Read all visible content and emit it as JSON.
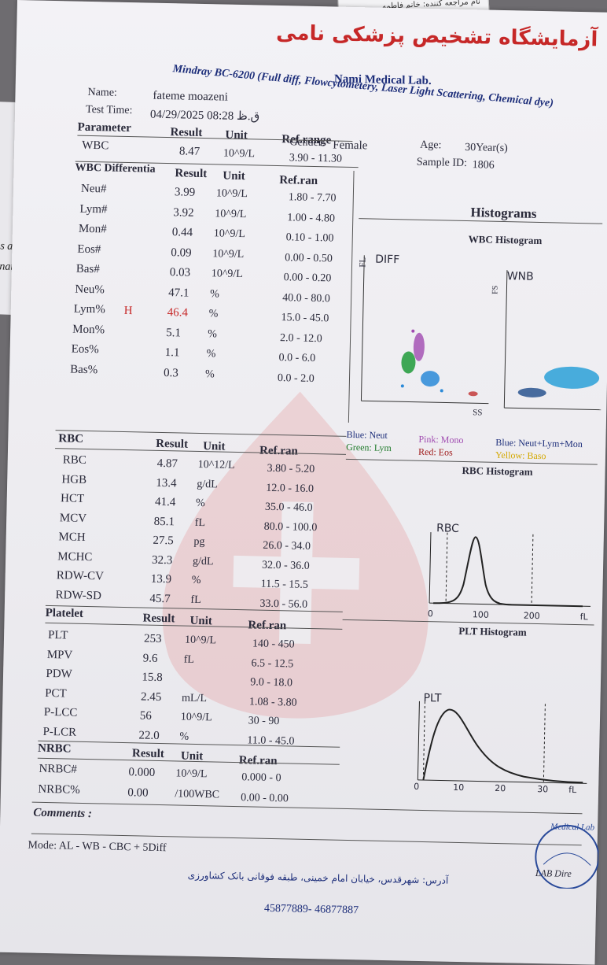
{
  "slip": {
    "text": "نام مراجعه کننده: خانم فاطمه"
  },
  "lab": {
    "name_fa": "آزمایشگاه تشخیص پزشکی نامی",
    "name_en": "Nami Medical Lab.",
    "analyzer": "Mindray BC-6200 (Full diff, Flowcytometery, Laser Light Scattering, Chemical dye)"
  },
  "patient": {
    "name_label": "Name:",
    "name": "fateme moazeni",
    "time_label": "Test Time:",
    "time": "04/29/2025 08:28 ق.ظ",
    "gender_label": "Gender:",
    "gender": "Female",
    "age_label": "Age:",
    "age": "30Year(s)",
    "sample_label": "Sample ID:",
    "sample": "1806"
  },
  "wbc_header": {
    "param": "Parameter",
    "result": "Result",
    "unit": "Unit",
    "ref": "Ref.range"
  },
  "wbc": {
    "name": "WBC",
    "result": "8.47",
    "unit": "10^9/L",
    "ref": "3.90 - 11.30"
  },
  "diff_header": {
    "title": "WBC Differentia",
    "result": "Result",
    "unit": "Unit",
    "ref": "Ref.ran"
  },
  "diff_rows": [
    {
      "name": "Neu#",
      "flag": "",
      "result": "3.99",
      "unit": "10^9/L",
      "ref": "1.80 - 7.70"
    },
    {
      "name": "Lym#",
      "flag": "",
      "result": "3.92",
      "unit": "10^9/L",
      "ref": "1.00 - 4.80"
    },
    {
      "name": "Mon#",
      "flag": "",
      "result": "0.44",
      "unit": "10^9/L",
      "ref": "0.10 - 1.00"
    },
    {
      "name": "Eos#",
      "flag": "",
      "result": "0.09",
      "unit": "10^9/L",
      "ref": "0.00 - 0.50"
    },
    {
      "name": "Bas#",
      "flag": "",
      "result": "0.03",
      "unit": "10^9/L",
      "ref": "0.00 - 0.20"
    },
    {
      "name": "Neu%",
      "flag": "",
      "result": "47.1",
      "unit": "%",
      "ref": "40.0 - 80.0"
    },
    {
      "name": "Lym%",
      "flag": "H",
      "result": "46.4",
      "unit": "%",
      "ref": "15.0 - 45.0"
    },
    {
      "name": "Mon%",
      "flag": "",
      "result": "5.1",
      "unit": "%",
      "ref": "2.0 - 12.0"
    },
    {
      "name": "Eos%",
      "flag": "",
      "result": "1.1",
      "unit": "%",
      "ref": "0.0 - 6.0"
    },
    {
      "name": "Bas%",
      "flag": "",
      "result": "0.3",
      "unit": "%",
      "ref": "0.0 - 2.0"
    }
  ],
  "histograms": {
    "title": "Histograms",
    "wbc_title": "WBC Histogram",
    "diff_label": "DIFF",
    "diff_y": "FL",
    "diff_x": "SS",
    "wnb_label": "WNB",
    "wnb_y": "FS",
    "legend": {
      "blue": "Blue: Neut",
      "green": "Green: Lym",
      "pink": "Pink: Mono",
      "red": "Red: Eos",
      "wnb_blue": "Blue: Neut+Lym+Mon",
      "wnb_yellow": "Yellow: Baso"
    },
    "rbc_title": "RBC Histogram",
    "rbc_label": "RBC",
    "rbc_ticks": [
      "0",
      "100",
      "200",
      "fL"
    ],
    "plt_title": "PLT Histogram",
    "plt_label": "PLT",
    "plt_ticks": [
      "0",
      "10",
      "20",
      "30",
      "fL"
    ]
  },
  "rbc_header": {
    "title": "RBC",
    "result": "Result",
    "unit": "Unit",
    "ref": "Ref.ran"
  },
  "rbc_rows": [
    {
      "name": "RBC",
      "result": "4.87",
      "unit": "10^12/L",
      "ref": "3.80 - 5.20"
    },
    {
      "name": "HGB",
      "result": "13.4",
      "unit": "g/dL",
      "ref": "12.0 - 16.0"
    },
    {
      "name": "HCT",
      "result": "41.4",
      "unit": "%",
      "ref": "35.0 - 46.0"
    },
    {
      "name": "MCV",
      "result": "85.1",
      "unit": "fL",
      "ref": "80.0 - 100.0"
    },
    {
      "name": "MCH",
      "result": "27.5",
      "unit": "pg",
      "ref": "26.0 - 34.0"
    },
    {
      "name": "MCHC",
      "result": "32.3",
      "unit": "g/dL",
      "ref": "32.0 - 36.0"
    },
    {
      "name": "RDW-CV",
      "result": "13.9",
      "unit": "%",
      "ref": "11.5 - 15.5"
    },
    {
      "name": "RDW-SD",
      "result": "45.7",
      "unit": "fL",
      "ref": "33.0 - 56.0"
    }
  ],
  "plt_header": {
    "title": "Platelet",
    "result": "Result",
    "unit": "Unit",
    "ref": "Ref.ran"
  },
  "plt_rows": [
    {
      "name": "PLT",
      "result": "253",
      "unit": "10^9/L",
      "ref": "140 - 450"
    },
    {
      "name": "MPV",
      "result": "9.6",
      "unit": "fL",
      "ref": "6.5 - 12.5"
    },
    {
      "name": "PDW",
      "result": "15.8",
      "unit": "",
      "ref": "9.0 - 18.0"
    },
    {
      "name": "PCT",
      "result": "2.45",
      "unit": "mL/L",
      "ref": "1.08 - 3.80"
    },
    {
      "name": "P-LCC",
      "result": "56",
      "unit": "10^9/L",
      "ref": "30 - 90"
    },
    {
      "name": "P-LCR",
      "result": "22.0",
      "unit": "%",
      "ref": "11.0 - 45.0"
    }
  ],
  "nrbc_header": {
    "title": "NRBC",
    "result": "Result",
    "unit": "Unit",
    "ref": "Ref.ran"
  },
  "nrbc_rows": [
    {
      "name": "NRBC#",
      "result": "0.000",
      "unit": "10^9/L",
      "ref": "0.000 - 0"
    },
    {
      "name": "NRBC%",
      "result": "0.00",
      "unit": "/100WBC",
      "ref": "0.00 - 0.00"
    }
  ],
  "comments_label": "Comments :",
  "mode": "Mode: AL - WB - CBC + 5Diff",
  "address": "آدرس: شهرقدس، خیابان امام خمینی، طبقه فوقانی بانک کشاورزی",
  "phone": "45877889- 46877887",
  "stamp": {
    "text": "Medical Lab",
    "lab_dir": "LAB Dire"
  },
  "colors": {
    "title_red": "#c62828",
    "blue": "#1d2e7a",
    "green": "#1f7a2a",
    "section_red": "#a01a1a",
    "watermark": "#e05a5a"
  }
}
